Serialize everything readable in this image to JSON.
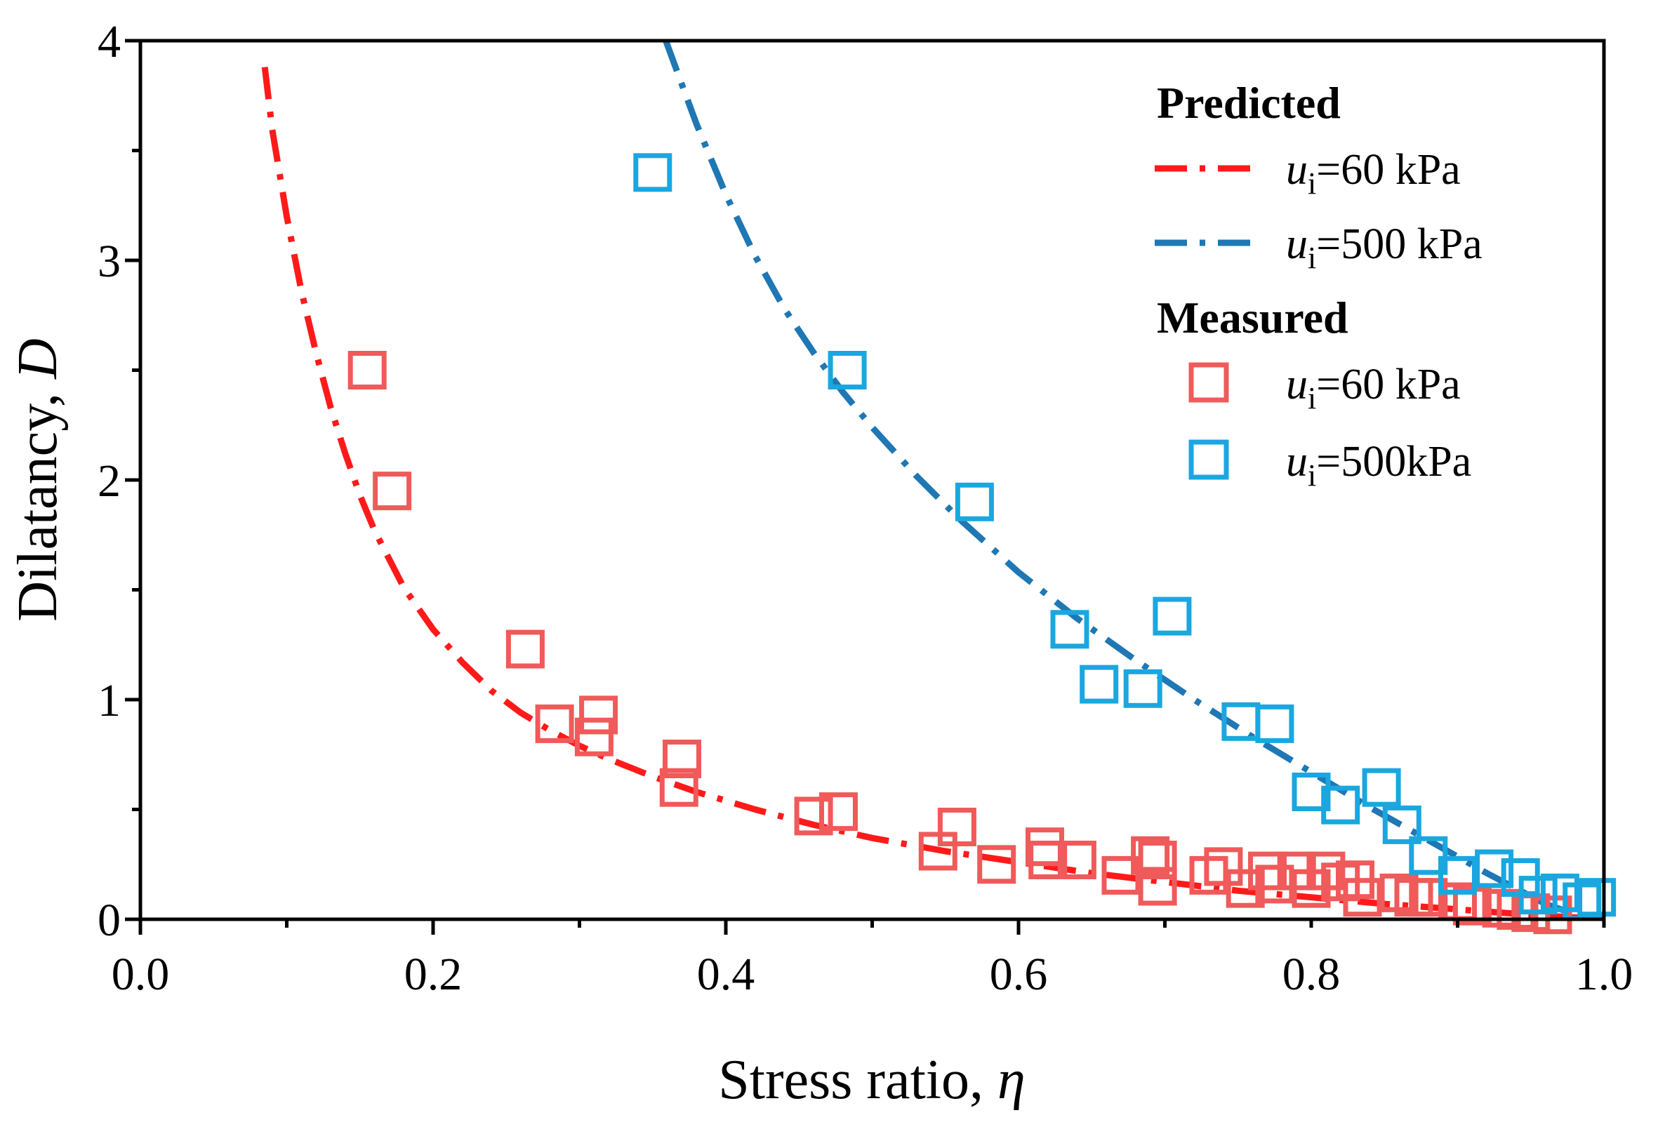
{
  "chart_data": {
    "type": "scatter",
    "title": "",
    "xlabel": "Stress ratio, ",
    "xlabel_symbol": "η",
    "ylabel": "Dilatancy, ",
    "ylabel_symbol": "D",
    "xlim": [
      0.0,
      1.0
    ],
    "ylim": [
      0,
      4
    ],
    "x_ticks": [
      "0.0",
      "0.2",
      "0.4",
      "0.6",
      "0.8",
      "1.0"
    ],
    "x_tick_values": [
      0.0,
      0.2,
      0.4,
      0.6,
      0.8,
      1.0
    ],
    "y_ticks": [
      "0",
      "1",
      "2",
      "3",
      "4"
    ],
    "y_tick_values": [
      0,
      1,
      2,
      3,
      4
    ],
    "grid": false,
    "legend_position": "top-right",
    "legend": {
      "predicted_title": "Predicted",
      "measured_title": "Measured",
      "entries": [
        {
          "symbol": "u",
          "sub": "i",
          "text": "=60 kPa"
        },
        {
          "symbol": "u",
          "sub": "i",
          "text": "=500 kPa"
        },
        {
          "symbol": "u",
          "sub": "i",
          "text": "=60 kPa"
        },
        {
          "symbol": "u",
          "sub": "i",
          "text": "=500kPa"
        }
      ]
    },
    "colors": {
      "pred60": "#ff1a1a",
      "pred500": "#1f77b4",
      "meas60": "#f05a5a",
      "meas500": "#1aa7e0"
    },
    "predicted": [
      {
        "name": "u_i=60 kPa (predicted)",
        "x": [
          0.085,
          0.09,
          0.1,
          0.11,
          0.12,
          0.13,
          0.14,
          0.15,
          0.16,
          0.18,
          0.2,
          0.22,
          0.24,
          0.26,
          0.28,
          0.3,
          0.32,
          0.35,
          0.38,
          0.42,
          0.46,
          0.5,
          0.55,
          0.6,
          0.65,
          0.7,
          0.75,
          0.8,
          0.85,
          0.9,
          0.95,
          1.0
        ],
        "y": [
          3.88,
          3.6,
          3.2,
          2.86,
          2.58,
          2.33,
          2.12,
          1.93,
          1.77,
          1.51,
          1.32,
          1.17,
          1.04,
          0.94,
          0.86,
          0.79,
          0.73,
          0.65,
          0.58,
          0.5,
          0.43,
          0.37,
          0.31,
          0.26,
          0.21,
          0.17,
          0.13,
          0.1,
          0.07,
          0.045,
          0.02,
          0.0
        ]
      },
      {
        "name": "u_i=500 kPa (predicted)",
        "x": [
          0.359,
          0.37,
          0.38,
          0.4,
          0.42,
          0.44,
          0.46,
          0.48,
          0.5,
          0.53,
          0.56,
          0.6,
          0.64,
          0.68,
          0.72,
          0.76,
          0.8,
          0.84,
          0.88,
          0.92,
          0.96,
          0.99,
          1.0
        ],
        "y": [
          4.0,
          3.8,
          3.62,
          3.3,
          3.02,
          2.78,
          2.58,
          2.4,
          2.24,
          2.02,
          1.82,
          1.58,
          1.37,
          1.18,
          1.0,
          0.83,
          0.67,
          0.51,
          0.36,
          0.21,
          0.07,
          0.0,
          0.0
        ]
      }
    ],
    "measured": [
      {
        "name": "u_i=60 kPa (measured)",
        "x": [
          0.155,
          0.172,
          0.263,
          0.283,
          0.31,
          0.313,
          0.37,
          0.368,
          0.46,
          0.477,
          0.545,
          0.558,
          0.585,
          0.618,
          0.62,
          0.64,
          0.67,
          0.69,
          0.695,
          0.695,
          0.73,
          0.74,
          0.755,
          0.77,
          0.775,
          0.79,
          0.8,
          0.81,
          0.82,
          0.83,
          0.835,
          0.86,
          0.87,
          0.88,
          0.9,
          0.91,
          0.93,
          0.94,
          0.95,
          0.965
        ],
        "y": [
          2.5,
          1.95,
          1.23,
          0.89,
          0.83,
          0.93,
          0.73,
          0.6,
          0.47,
          0.49,
          0.31,
          0.42,
          0.25,
          0.33,
          0.27,
          0.27,
          0.2,
          0.29,
          0.27,
          0.15,
          0.2,
          0.24,
          0.14,
          0.22,
          0.16,
          0.22,
          0.14,
          0.22,
          0.17,
          0.18,
          0.1,
          0.12,
          0.1,
          0.1,
          0.08,
          0.06,
          0.05,
          0.04,
          0.03,
          0.02
        ]
      },
      {
        "name": "u_i=500kPa (measured)",
        "x": [
          0.35,
          0.483,
          0.57,
          0.635,
          0.655,
          0.685,
          0.705,
          0.752,
          0.775,
          0.8,
          0.82,
          0.848,
          0.862,
          0.88,
          0.9,
          0.925,
          0.943,
          0.955,
          0.97,
          0.985,
          0.995
        ],
        "y": [
          3.4,
          2.5,
          1.9,
          1.32,
          1.07,
          1.05,
          1.38,
          0.9,
          0.89,
          0.58,
          0.52,
          0.6,
          0.43,
          0.29,
          0.2,
          0.23,
          0.19,
          0.11,
          0.12,
          0.08,
          0.1
        ]
      }
    ]
  }
}
